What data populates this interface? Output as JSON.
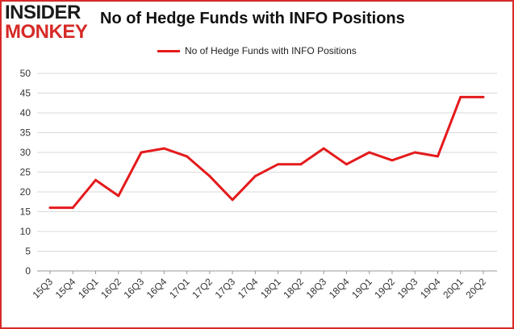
{
  "logo": {
    "line1": "INSIDER",
    "line2": "MONKEY"
  },
  "chart_data": {
    "type": "line",
    "title": "No of Hedge Funds with INFO Positions",
    "categories": [
      "15Q3",
      "15Q4",
      "16Q1",
      "16Q2",
      "16Q3",
      "16Q4",
      "17Q1",
      "17Q2",
      "17Q3",
      "17Q4",
      "18Q1",
      "18Q2",
      "18Q3",
      "18Q4",
      "19Q1",
      "19Q2",
      "19Q3",
      "19Q4",
      "20Q1",
      "20Q2"
    ],
    "series": [
      {
        "name": "No of Hedge Funds with INFO Positions",
        "values": [
          16,
          16,
          23,
          19,
          30,
          31,
          29,
          24,
          18,
          24,
          27,
          27,
          31,
          27,
          30,
          28,
          30,
          29,
          44,
          44
        ],
        "color": "#e41a1c"
      }
    ],
    "xlabel": "",
    "ylabel": "",
    "ylim": [
      0,
      50
    ],
    "yticks": [
      0,
      5,
      10,
      15,
      20,
      25,
      30,
      35,
      40,
      45,
      50
    ],
    "grid": true,
    "legend_position": "top-center",
    "border_color": "#d62a27"
  }
}
